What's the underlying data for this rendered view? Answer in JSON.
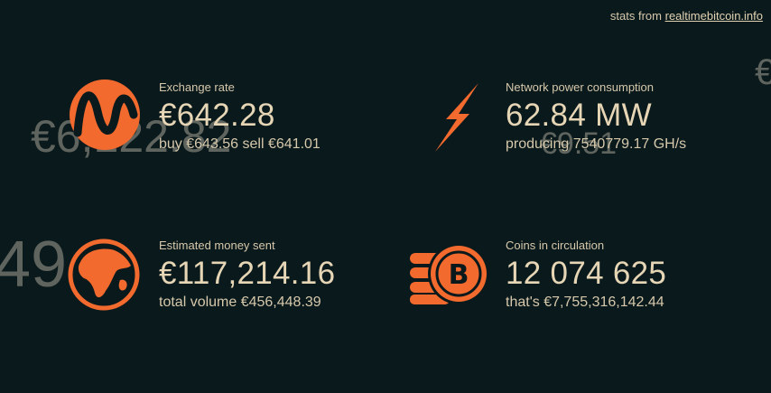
{
  "credit": {
    "prefix": "stats from",
    "link": "realtimebitcoin.info"
  },
  "ghosts": {
    "g1": "€6,122.82",
    "g2": "€9.51",
    "g3": "49",
    "g4": "€"
  },
  "stats": {
    "exchange": {
      "label": "Exchange rate",
      "value": "€642.28",
      "sub": "buy €643.56 sell €641.01",
      "icon": "exchange-rate-icon"
    },
    "power": {
      "label": "Network power consumption",
      "value": "62.84 MW",
      "sub": "producing 7540779.17 GH/s",
      "icon": "lightning-bolt-icon"
    },
    "money": {
      "label": "Estimated money sent",
      "value": "€117,214.16",
      "sub": "total volume €456,448.39",
      "icon": "globe-icon"
    },
    "coins": {
      "label": "Coins in circulation",
      "value": "12 074 625",
      "sub": "that's €7,755,316,142.44",
      "icon": "bitcoin-coins-icon"
    }
  },
  "colors": {
    "accent": "#f26a2d",
    "background": "#0a191c",
    "text": "#d9c9a8",
    "ghost": "#5f655e"
  }
}
